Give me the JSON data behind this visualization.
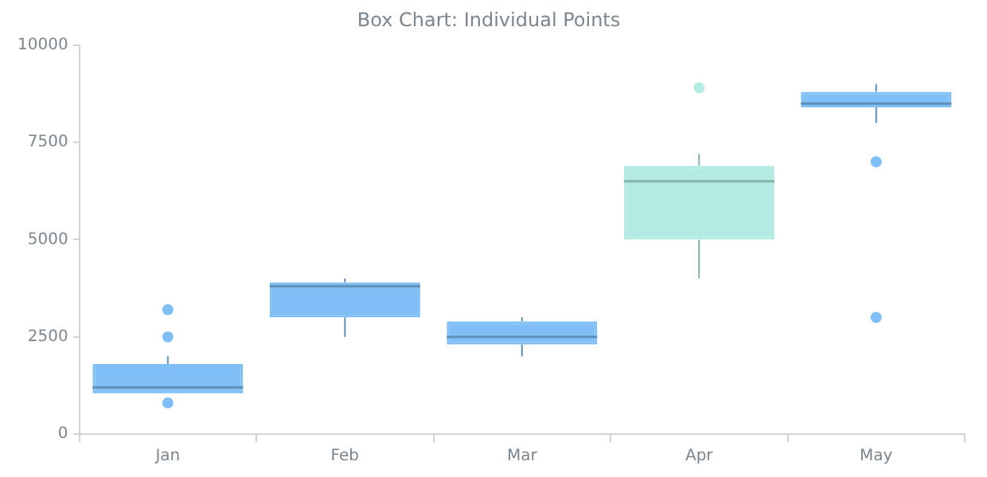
{
  "chart_data": {
    "type": "box",
    "title": "Box Chart: Individual Points",
    "categories": [
      "Jan",
      "Feb",
      "Mar",
      "Apr",
      "May"
    ],
    "boxes": [
      {
        "low": 1050,
        "q1": 1050,
        "median": 1200,
        "q3": 1800,
        "high": 2000,
        "outliers": [
          800,
          2500,
          3200
        ]
      },
      {
        "low": 2500,
        "q1": 3000,
        "median": 3800,
        "q3": 3900,
        "high": 4000
      },
      {
        "low": 2000,
        "q1": 2300,
        "median": 2500,
        "q3": 2900,
        "high": 3000
      },
      {
        "low": 4000,
        "q1": 5000,
        "median": 6500,
        "q3": 6900,
        "high": 7200,
        "outliers": [
          8900
        ]
      },
      {
        "low": 8000,
        "q1": 8400,
        "median": 8500,
        "q3": 8800,
        "high": 9000,
        "outliers": [
          7000,
          3000
        ]
      }
    ],
    "colors": [
      "#7fbff5",
      "#7fbff5",
      "#7fbff5",
      "#b3ebe3",
      "#7fbff5"
    ],
    "ylim": [
      0,
      10000
    ],
    "yticks": [
      0,
      2500,
      5000,
      7500,
      10000
    ]
  }
}
